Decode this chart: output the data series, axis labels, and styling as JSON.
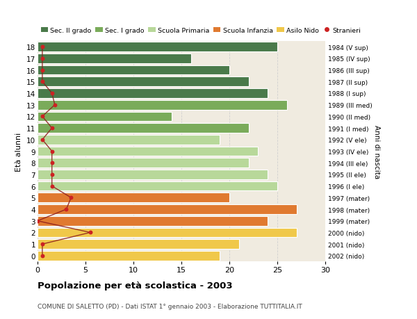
{
  "ages": [
    18,
    17,
    16,
    15,
    14,
    13,
    12,
    11,
    10,
    9,
    8,
    7,
    6,
    5,
    4,
    3,
    2,
    1,
    0
  ],
  "right_labels": [
    "1984 (V sup)",
    "1985 (IV sup)",
    "1986 (III sup)",
    "1987 (II sup)",
    "1988 (I sup)",
    "1989 (III med)",
    "1990 (II med)",
    "1991 (I med)",
    "1992 (V ele)",
    "1993 (IV ele)",
    "1994 (III ele)",
    "1995 (II ele)",
    "1996 (I ele)",
    "1997 (mater)",
    "1998 (mater)",
    "1999 (mater)",
    "2000 (nido)",
    "2001 (nido)",
    "2002 (nido)"
  ],
  "bar_values": [
    25,
    16,
    20,
    22,
    24,
    26,
    14,
    22,
    19,
    23,
    22,
    24,
    25,
    20,
    27,
    24,
    27,
    21,
    19
  ],
  "bar_colors": [
    "#4a7a4a",
    "#4a7a4a",
    "#4a7a4a",
    "#4a7a4a",
    "#4a7a4a",
    "#7aab5a",
    "#7aab5a",
    "#7aab5a",
    "#b8d89a",
    "#b8d89a",
    "#b8d89a",
    "#b8d89a",
    "#b8d89a",
    "#e07a30",
    "#e07a30",
    "#e07a30",
    "#f0c84a",
    "#f0c84a",
    "#f0c84a"
  ],
  "stranieri_values": [
    0.5,
    0.5,
    0.5,
    0.5,
    1.5,
    1.8,
    0.5,
    1.5,
    0.5,
    1.5,
    1.5,
    1.5,
    1.5,
    3.5,
    3.0,
    0.0,
    5.5,
    0.5,
    0.5
  ],
  "legend_labels": [
    "Sec. II grado",
    "Sec. I grado",
    "Scuola Primaria",
    "Scuola Infanzia",
    "Asilo Nido",
    "Stranieri"
  ],
  "legend_colors": [
    "#4a7a4a",
    "#7aab5a",
    "#b8d89a",
    "#e07a30",
    "#f0c84a",
    "#cc2222"
  ],
  "title": "Popolazione per età scolastica - 2003",
  "subtitle": "COMUNE DI SALETTO (PD) - Dati ISTAT 1° gennaio 2003 - Elaborazione TUTTITALIA.IT",
  "ylabel": "Età alunni",
  "right_ylabel": "Anni di nascita",
  "xlim": [
    0,
    30
  ],
  "xticks": [
    0,
    5,
    10,
    15,
    20,
    25,
    30
  ],
  "plot_bg": "#f0ebe0",
  "fig_bg": "#ffffff",
  "grid_color": "#d0d0d0"
}
